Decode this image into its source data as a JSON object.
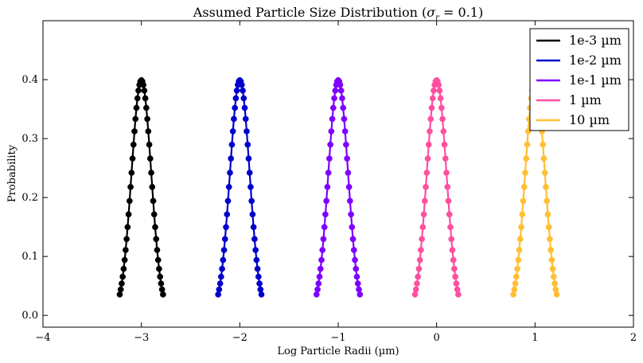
{
  "chart_data": {
    "type": "line",
    "title": "Assumed Particle Size Distribution (σ_r = 0.1)",
    "title_parts": {
      "prefix": "Assumed Particle Size Distribution (",
      "symbol": "σ",
      "subscript": "r",
      "suffix": " = 0.1)"
    },
    "xlabel": "Log Particle Radii (µm)",
    "ylabel": "Probability",
    "xlim": [
      -4,
      2
    ],
    "ylim": [
      -0.02,
      0.5
    ],
    "xticks": [
      -4,
      -3,
      -2,
      -1,
      0,
      1,
      2
    ],
    "xtick_labels": [
      "−4",
      "−3",
      "−2",
      "−1",
      "0",
      "1",
      "2"
    ],
    "yticks": [
      0.0,
      0.1,
      0.2,
      0.3,
      0.4
    ],
    "ytick_labels": [
      "0.0",
      "0.1",
      "0.2",
      "0.3",
      "0.4"
    ],
    "grid": false,
    "legend_position": "top-right",
    "markers": true,
    "distribution": {
      "kind": "gaussian",
      "sigma": 0.1,
      "peak": 0.399,
      "half_width": 0.22,
      "point_spacing": 0.01
    },
    "series": [
      {
        "name": "1e-3 µm",
        "center": -3,
        "color": "#000000"
      },
      {
        "name": "1e-2 µm",
        "center": -2,
        "color": "#0000cc"
      },
      {
        "name": "1e-1 µm",
        "center": -1,
        "color": "#7f00ff"
      },
      {
        "name": "1 µm",
        "center": 0,
        "color": "#ff4fa0"
      },
      {
        "name": "10 µm",
        "center": 1,
        "color": "#ffbf33"
      }
    ]
  }
}
